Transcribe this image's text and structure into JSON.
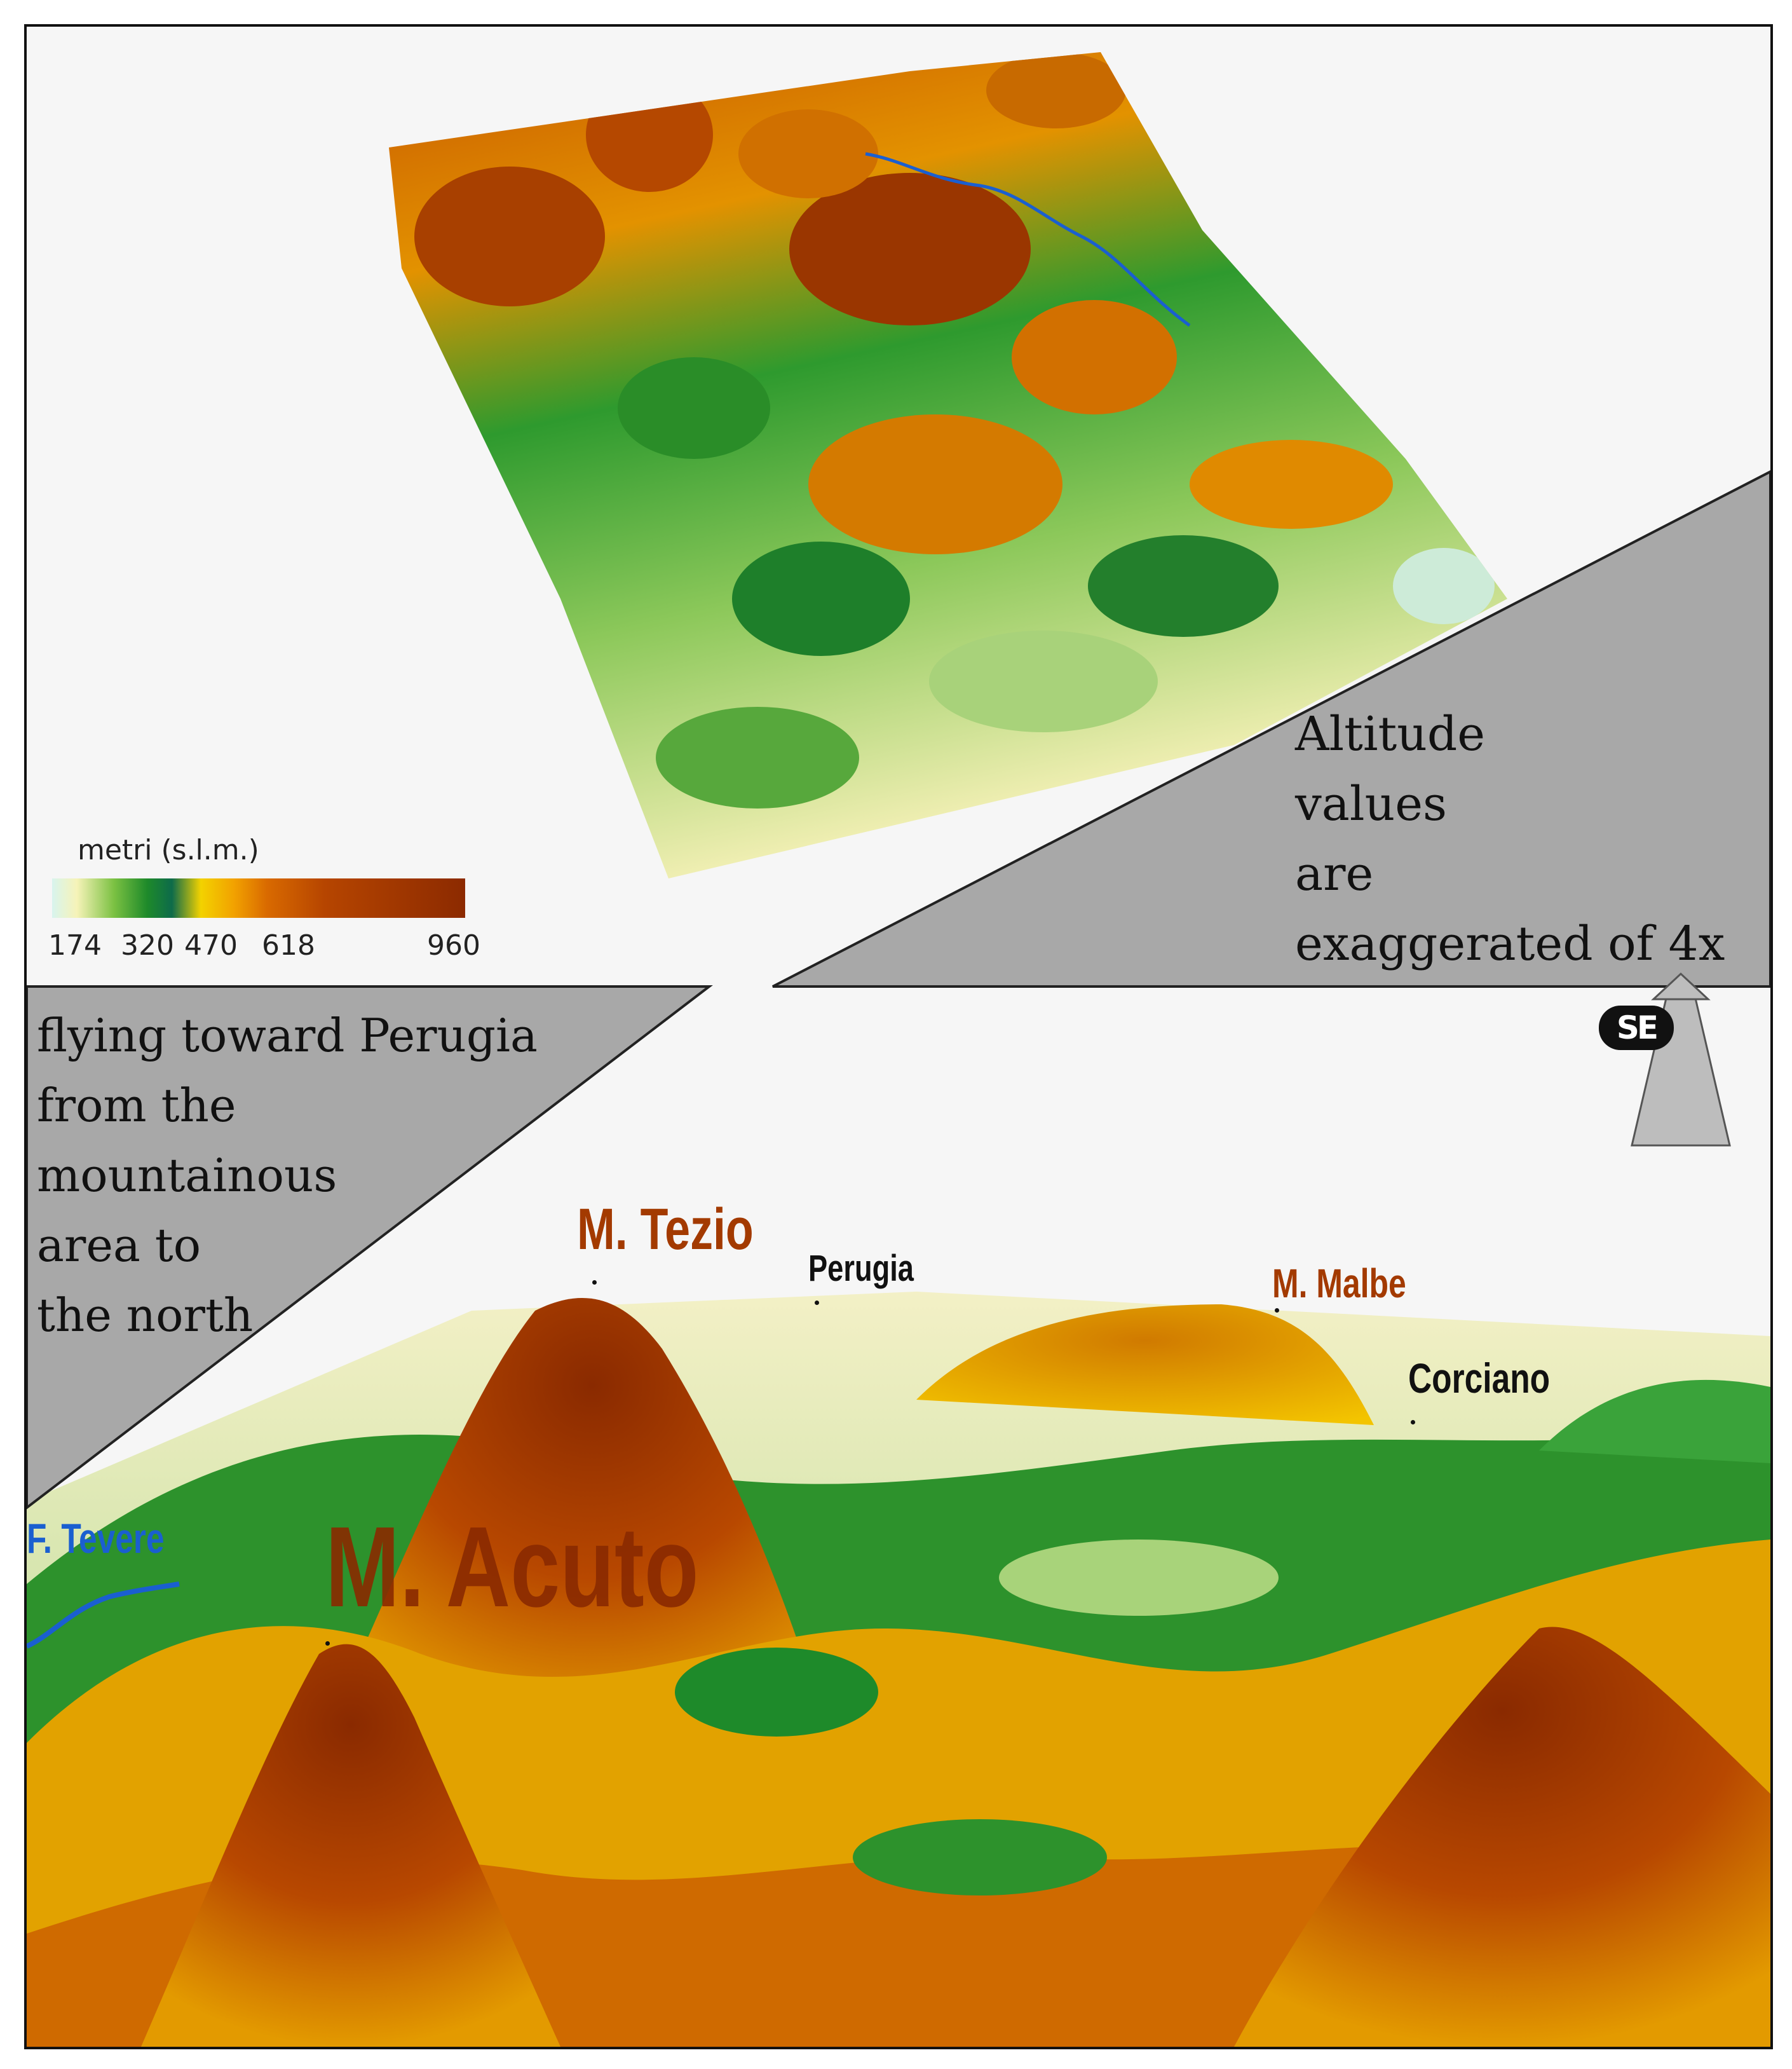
{
  "legend": {
    "title": "metri (s.l.m.)",
    "ticks": [
      "174",
      "320",
      "470",
      "618",
      "960"
    ]
  },
  "callouts": {
    "altitude_lines": [
      "Altitude",
      "values",
      "are",
      "exaggerated of 4x"
    ],
    "flying_lines": [
      "flying toward Perugia",
      "from the",
      "mountainous",
      "area to",
      "the north"
    ]
  },
  "orientation": {
    "label": "SE"
  },
  "places": {
    "m_tezio": "M. Tezio",
    "perugia": "Perugia",
    "m_malbe": "M. Malbe",
    "corciano": "Corciano",
    "m_acuto": "M. Acuto",
    "tevere": "F. Tevere"
  },
  "colors": {
    "low": "#f6f3b8",
    "green": "#1e8a2a",
    "yellow": "#f3d200",
    "orange": "#e08a00",
    "high": "#8c2a00",
    "callout_gray": "#a8a8a8",
    "river": "#1a5fd0"
  }
}
